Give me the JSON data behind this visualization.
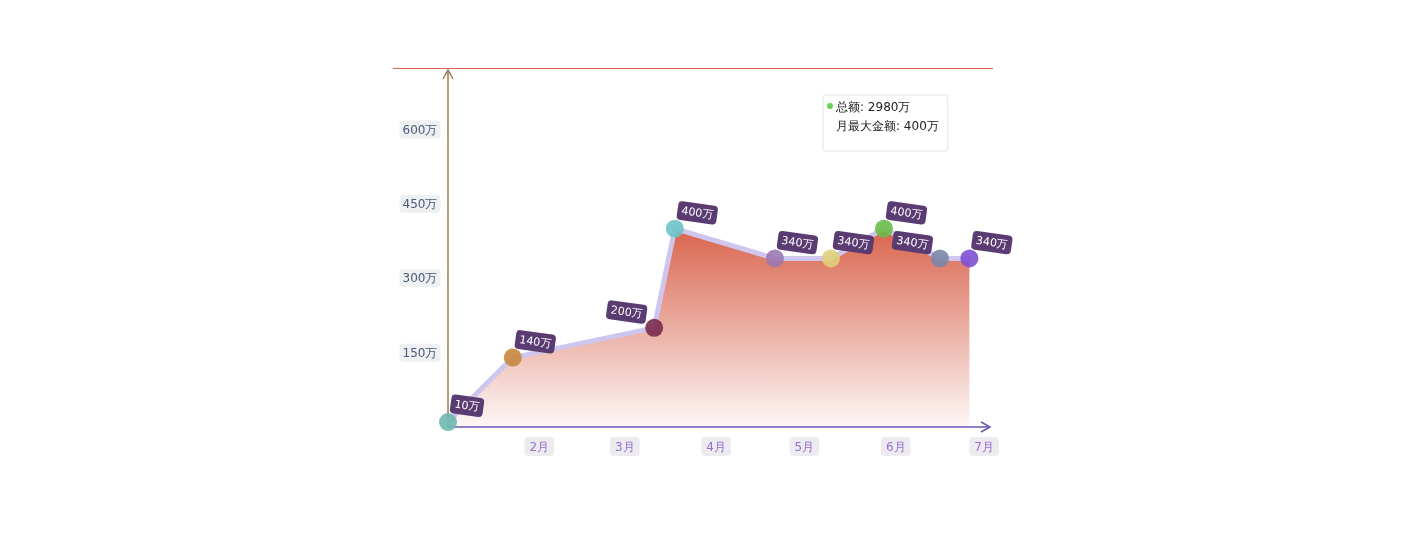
{
  "chart_data": {
    "type": "area",
    "x": [
      "--01-01",
      "--01-23",
      "--03-11",
      "--03-18",
      "--04-21",
      "--05-10",
      "--05-28",
      "--06-16",
      "--06-26"
    ],
    "series": [
      {
        "color": "#d9654f",
        "values": [
          10,
          140,
          200,
          400,
          340,
          340,
          400,
          340,
          340
        ],
        "value_labels": [
          "10万",
          "140万",
          "200万",
          "400万",
          "340万",
          "340万",
          "400万",
          "340万",
          "340万"
        ],
        "colors": [
          "#6fb8b0",
          "#c8873f",
          "#7a2a4e",
          "#6cc3c8",
          "#9c78b0",
          "#e0cf7a",
          "#6cbb4a",
          "#7b86a8",
          "#8050d0"
        ]
      }
    ],
    "marker": "circle",
    "xlim": [
      "--01-01",
      "--07-03"
    ],
    "xticks": [
      {
        "value": "--02-01",
        "label": "2月"
      },
      {
        "value": "--03-01",
        "label": "3月"
      },
      {
        "value": "--04-01",
        "label": "4月"
      },
      {
        "value": "--05-01",
        "label": "5月"
      },
      {
        "value": "--06-01",
        "label": "6月"
      },
      {
        "value": "--07-01",
        "label": "7月"
      }
    ],
    "ylim": [
      0,
      720
    ],
    "yticks": [
      {
        "value": 150,
        "label": "150万"
      },
      {
        "value": 300,
        "label": "300万"
      },
      {
        "value": 450,
        "label": "450万"
      },
      {
        "value": 600,
        "label": "600万"
      }
    ],
    "annotations": [
      "总额: 2980万",
      "月最大金额: 400万"
    ],
    "grid": false
  }
}
